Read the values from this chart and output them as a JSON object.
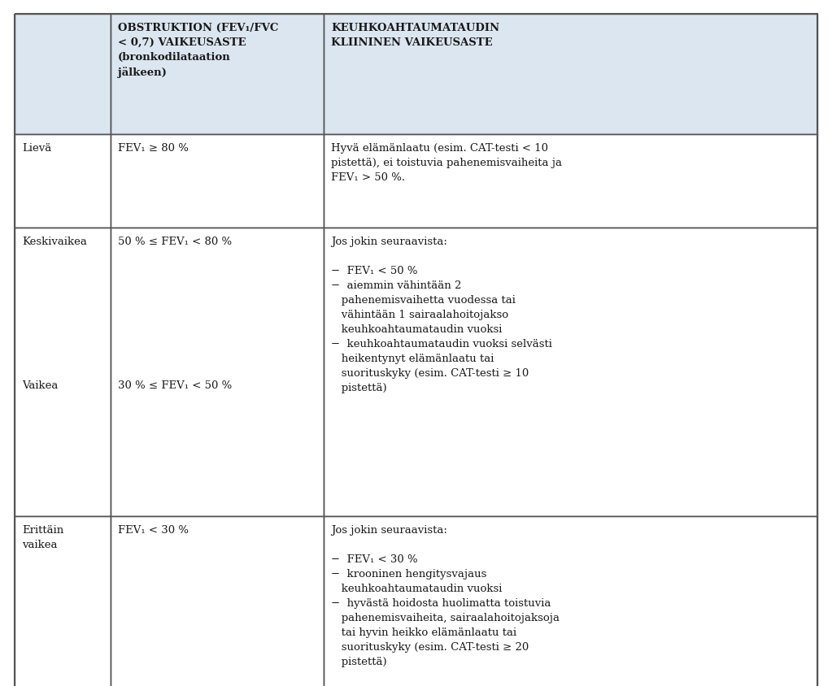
{
  "bg_color": "#ffffff",
  "header_bg": "#dce6f1",
  "cell_bg_white": "#ffffff",
  "border_color": "#555555",
  "text_color": "#1a1a1a",
  "figsize": [
    10.23,
    8.45
  ],
  "dpi": 100,
  "col1_label": "OBSTRUKTION (FEV₁/FVC\n< 0,7) VAIKEUSASTE\n(bronkodilataation\njälkeen)",
  "col2_label": "KEUHKOAHTAUMATAUDIN\nKLIININEN VAIKEUSASTE",
  "rows": [
    {
      "col0": "Lievä",
      "col1": "FEV₁ ≥ 80 %",
      "col2": "Hyvä elämänlaatu (esim. CAT-testi < 10\npistettä), ei toistuvia pahenemisvaiheita ja\nFEV₁ > 50 %."
    },
    {
      "col0_top": "Keskivaikea",
      "col0_bottom": "Vaikea",
      "col1_top": "50 % ≤ FEV₁ < 80 %",
      "col1_bottom": "30 % ≤ FEV₁ < 50 %",
      "col2": "Jos jokin seuraavista:\n\n−  FEV₁ < 50 %\n−  aiemmin vähintään 2\n   pahenemisvaihetta vuodessa tai\n   vähintään 1 sairaalahoitojakso\n   keuhkoahtaumataudin vuoksi\n−  keuhkoahtaumataudin vuoksi selvästi\n   heikentynyt elämänlaatu tai\n   suorituskyky (esim. CAT-testi ≥ 10\n   pistettä)"
    },
    {
      "col0": "Erittäin\nvaikea",
      "col1": "FEV₁ < 30 %",
      "col2": "Jos jokin seuraavista:\n\n−  FEV₁ < 30 %\n−  krooninen hengitysvajaus\n   keuhkoahtaumataudin vuoksi\n−  hyvästä hoidosta huolimatta toistuvia\n   pahenemisvaiheita, sairaalahoitojaksoja\n   tai hyvin heikko elämänlaatu tai\n   suorituskyky (esim. CAT-testi ≥ 20\n   pistettä)"
    }
  ],
  "font_size_header": 9.5,
  "font_size_cell": 9.5,
  "linespacing": 1.5
}
